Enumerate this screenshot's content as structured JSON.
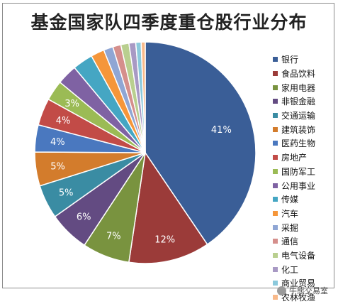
{
  "chart_data": {
    "type": "pie",
    "title": "基金国家队四季度重仓股行业分布",
    "legend_position": "right",
    "slices": [
      {
        "label": "银行",
        "value": 41,
        "data_label": "41%",
        "color": "#3a5e97"
      },
      {
        "label": "食品饮料",
        "value": 12,
        "data_label": "12%",
        "color": "#9b3b39"
      },
      {
        "label": "家用电器",
        "value": 7,
        "data_label": "7%",
        "color": "#79933f"
      },
      {
        "label": "非银金融",
        "value": 6,
        "data_label": "6%",
        "color": "#634b82"
      },
      {
        "label": "交通运输",
        "value": 5,
        "data_label": "5%",
        "color": "#3a8ca3"
      },
      {
        "label": "建筑装饰",
        "value": 5,
        "data_label": "5%",
        "color": "#d37c2c"
      },
      {
        "label": "医药生物",
        "value": 4,
        "data_label": "4%",
        "color": "#4a78bf"
      },
      {
        "label": "房地产",
        "value": 4,
        "data_label": "4%",
        "color": "#c24b47"
      },
      {
        "label": "国防军工",
        "value": 3,
        "data_label": "3%",
        "color": "#9bbb55"
      },
      {
        "label": "公用事业",
        "value": 3,
        "data_label": "",
        "color": "#7f62a3"
      },
      {
        "label": "传媒",
        "value": 3,
        "data_label": "",
        "color": "#45a6c3"
      },
      {
        "label": "汽车",
        "value": 2,
        "data_label": "",
        "color": "#f5963a"
      },
      {
        "label": "采掘",
        "value": 1.4,
        "data_label": "",
        "color": "#8fa6d4"
      },
      {
        "label": "通信",
        "value": 1.2,
        "data_label": "",
        "color": "#d58f8c"
      },
      {
        "label": "电气设备",
        "value": 1.2,
        "data_label": "",
        "color": "#b9cf8f"
      },
      {
        "label": "化工",
        "value": 1,
        "data_label": "",
        "color": "#a899c4"
      },
      {
        "label": "商业贸易",
        "value": 0.8,
        "data_label": "",
        "color": "#8bc9dc"
      },
      {
        "label": "农林牧渔",
        "value": 0.6,
        "data_label": "",
        "color": "#f8b98a"
      }
    ]
  },
  "watermark": {
    "text": "牛熊交易室"
  }
}
